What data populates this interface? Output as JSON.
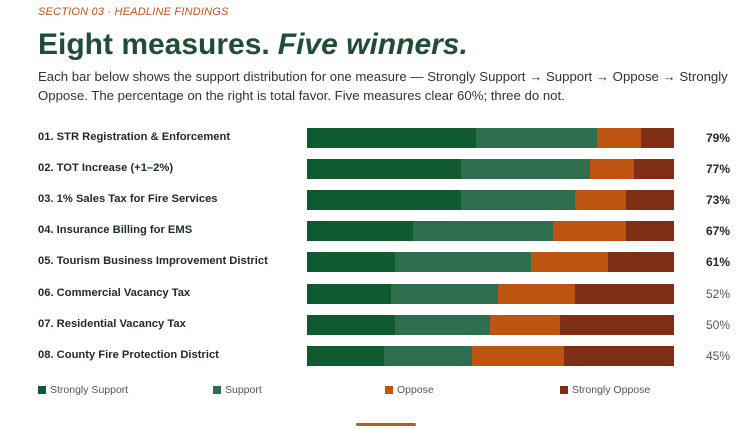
{
  "header": {
    "eyebrow": "SECTION 03 · HEADLINE FINDINGS",
    "title_part1": "Eight measures.",
    "title_part2": "Five winners.",
    "subtitle": "Each bar below shows the support distribution for one measure — Strongly Support → Support → Oppose → Strongly Oppose. The percentage on the right is total favor. Five measures clear 60%; three do not."
  },
  "colors": {
    "strongly_support": "#0f5a2e",
    "support": "#2e6e4f",
    "oppose": "#bd5410",
    "strongly_oppose": "#7f2e16",
    "accent": "#c0561a",
    "title": "#1f4d36"
  },
  "chart_data": {
    "type": "bar",
    "orientation": "horizontal",
    "stacked": true,
    "normalized": true,
    "categories": [
      "01.  STR Registration & Enforcement",
      "02.  TOT Increase (+1–2%)",
      "03.  1% Sales Tax for Fire Services",
      "04.  Insurance Billing for EMS",
      "05.  Tourism Business Improvement District",
      "06.  Commercial Vacancy Tax",
      "07.  Residential Vacancy Tax",
      "08.  County Fire Protection District"
    ],
    "series": [
      {
        "name": "Strongly Support",
        "values": [
          46,
          42,
          42,
          29,
          24,
          23,
          24,
          21
        ]
      },
      {
        "name": "Support",
        "values": [
          33,
          35,
          31,
          38,
          37,
          29,
          26,
          24
        ]
      },
      {
        "name": "Oppose",
        "values": [
          12,
          12,
          14,
          20,
          21,
          21,
          19,
          25
        ]
      },
      {
        "name": "Strongly Oppose",
        "values": [
          9,
          11,
          13,
          13,
          18,
          27,
          31,
          30
        ]
      }
    ],
    "total_favor_labels": [
      "79%",
      "77%",
      "73%",
      "67%",
      "61%",
      "52%",
      "50%",
      "45%"
    ],
    "total_favor": [
      79,
      77,
      73,
      67,
      61,
      52,
      50,
      45
    ],
    "threshold": 60,
    "legend_position": "bottom",
    "xlim": [
      0,
      100
    ]
  }
}
